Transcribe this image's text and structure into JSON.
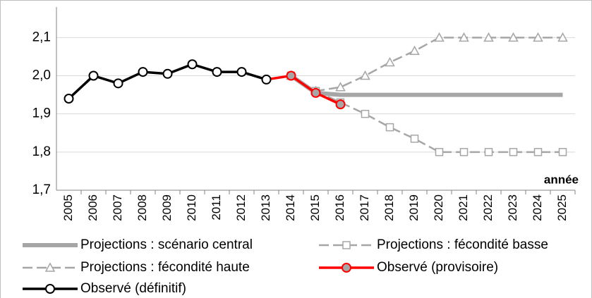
{
  "chart_data": {
    "type": "line",
    "xlabel": "année",
    "categories": [
      "2005",
      "2006",
      "2007",
      "2008",
      "2009",
      "2010",
      "2011",
      "2012",
      "2013",
      "2014",
      "2015",
      "2016",
      "2017",
      "2018",
      "2019",
      "2020",
      "2021",
      "2022",
      "2023",
      "2024",
      "2025"
    ],
    "series": [
      {
        "name": "Projections : scénario central",
        "color": "#a6a6a6",
        "marker": "none",
        "dashed": false,
        "values": [
          null,
          null,
          null,
          null,
          null,
          null,
          null,
          null,
          null,
          2.0,
          1.955,
          1.95,
          1.95,
          1.95,
          1.95,
          1.95,
          1.95,
          1.95,
          1.95,
          1.95,
          1.95
        ]
      },
      {
        "name": "Projections : fécondité basse",
        "color": "#a6a6a6",
        "marker": "square",
        "dashed": true,
        "values": [
          null,
          null,
          null,
          null,
          null,
          null,
          null,
          null,
          null,
          2.0,
          1.96,
          1.93,
          1.9,
          1.865,
          1.835,
          1.8,
          1.8,
          1.8,
          1.8,
          1.8,
          1.8
        ]
      },
      {
        "name": "Projections : fécondité haute",
        "color": "#a6a6a6",
        "marker": "triangle",
        "dashed": true,
        "values": [
          null,
          null,
          null,
          null,
          null,
          null,
          null,
          null,
          null,
          2.0,
          1.96,
          1.97,
          2.0,
          2.035,
          2.065,
          2.1,
          2.1,
          2.1,
          2.1,
          2.1,
          2.1
        ]
      },
      {
        "name": "Observé (provisoire)",
        "color": "#ff0000",
        "marker": "circle-grey",
        "dashed": false,
        "values": [
          null,
          null,
          null,
          null,
          null,
          null,
          null,
          null,
          1.99,
          2.0,
          1.955,
          1.925,
          null,
          null,
          null,
          null,
          null,
          null,
          null,
          null,
          null
        ]
      },
      {
        "name": "Observé (définitif)",
        "color": "#000000",
        "marker": "circle-white",
        "dashed": false,
        "values": [
          1.94,
          2.0,
          1.98,
          2.01,
          2.005,
          2.03,
          2.01,
          2.01,
          1.99,
          null,
          null,
          null,
          null,
          null,
          null,
          null,
          null,
          null,
          null,
          null,
          null
        ]
      }
    ],
    "ylim": [
      1.7,
      2.18
    ],
    "yticks": [
      {
        "value": 1.7,
        "label": "1,7"
      },
      {
        "value": 1.8,
        "label": "1,8"
      },
      {
        "value": 1.9,
        "label": "1,9"
      },
      {
        "value": 2.0,
        "label": "2,0"
      },
      {
        "value": 2.1,
        "label": "2,1"
      }
    ],
    "grid": true
  }
}
